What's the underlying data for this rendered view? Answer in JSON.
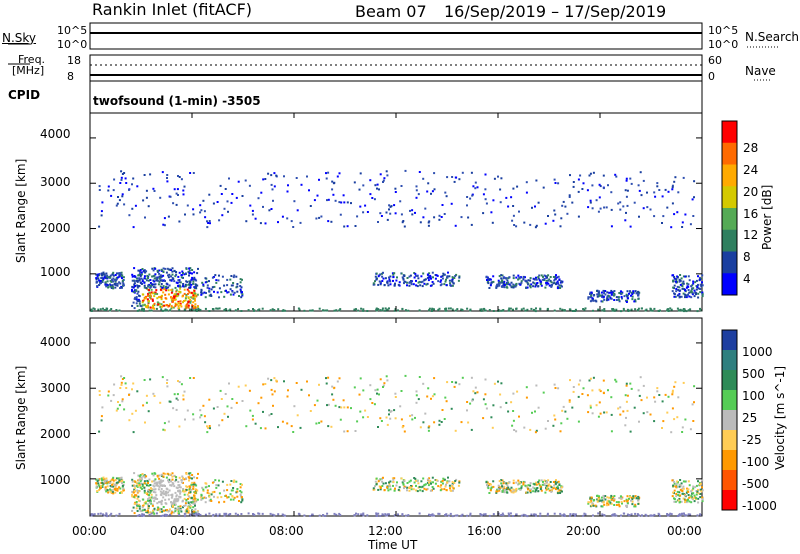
{
  "header": {
    "radar": "Rankin Inlet (fitACF)",
    "beam": "Beam 07",
    "dates": "16/Sep/2019 – 17/Sep/2019"
  },
  "top_panels": {
    "nsky_label": "N.Sky",
    "nsearch_label": "N.Search",
    "nsky_ticks": [
      "10^5",
      "10^0"
    ],
    "nsearch_ticks": [
      "10^5",
      "10^0"
    ],
    "freq_label": "Freq.",
    "freq_unit": "[MHz]",
    "freq_ticks": [
      "18",
      "8"
    ],
    "nave_label": "Nave",
    "nave_ticks": [
      "60",
      "0"
    ],
    "cpid_label": "CPID",
    "cpid_value": "twofsound (1-min) -3505"
  },
  "chart_data": [
    {
      "type": "heatmap",
      "name": "power",
      "ylabel": "Slant Range [km]",
      "ylim": [
        180,
        4550
      ],
      "yticks": [
        1000,
        2000,
        3000,
        4000
      ],
      "colorbar_label": "Power [dB]",
      "colorbar_ticks": [
        "28",
        "24",
        "20",
        "16",
        "12",
        "8",
        "4"
      ],
      "colorbar_colors": [
        "#ff0000",
        "#ff6a00",
        "#ffaa00",
        "#d4c900",
        "#55aa55",
        "#2f7f5f",
        "#1a3fa0",
        "#0000ff"
      ]
    },
    {
      "type": "heatmap",
      "name": "velocity",
      "ylabel": "Slant Range [km]",
      "ylim": [
        180,
        4550
      ],
      "yticks": [
        1000,
        2000,
        3000,
        4000
      ],
      "colorbar_label": "Velocity [m s^-1]",
      "colorbar_ticks": [
        "1000",
        "500",
        "100",
        "25",
        "-25",
        "-100",
        "-500",
        "-1000"
      ],
      "colorbar_colors": [
        "#1e3fa0",
        "#2f7f7f",
        "#2e8b57",
        "#55cc55",
        "#bbbbbb",
        "#ffcc55",
        "#ff9900",
        "#ff5500",
        "#ff0000"
      ]
    }
  ],
  "xaxis": {
    "label": "Time UT",
    "ticks": [
      "00:00",
      "04:00",
      "08:00",
      "12:00",
      "16:00",
      "20:00",
      "00:00"
    ]
  }
}
